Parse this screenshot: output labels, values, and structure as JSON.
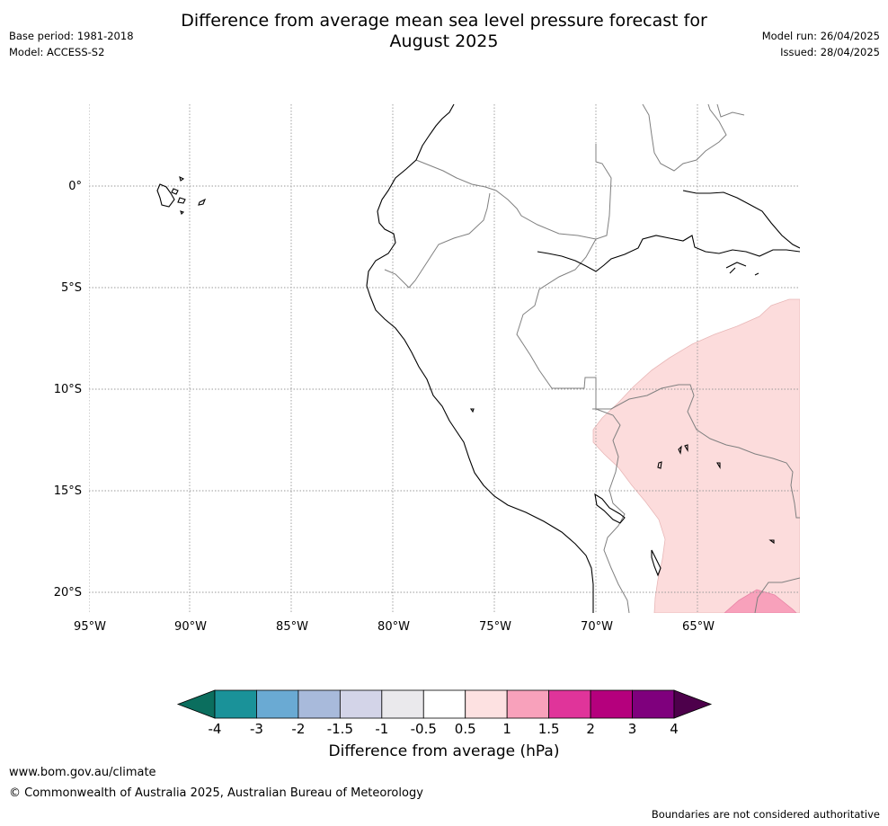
{
  "title_line1": "Difference from average mean sea level pressure forecast for",
  "title_line2": "August 2025",
  "meta_left": [
    "Base period: 1981-2018",
    "Model: ACCESS-S2"
  ],
  "meta_right": [
    "Model run: 26/04/2025",
    "Issued: 28/04/2025"
  ],
  "map": {
    "lon_labels": [
      "95°W",
      "90°W",
      "85°W",
      "80°W",
      "75°W",
      "70°W",
      "65°W"
    ],
    "lat_labels": [
      "0°",
      "5°S",
      "10°S",
      "15°S",
      "20°S"
    ],
    "lon_values": [
      -95,
      -90,
      -85,
      -80,
      -75,
      -70,
      -65
    ],
    "lat_values": [
      0,
      -5,
      -10,
      -15,
      -20
    ],
    "extent": {
      "lon": [
        -95,
        -60
      ],
      "lat": [
        -21,
        4
      ]
    },
    "anomaly_colors": {
      "light_pink": "#fcdcdc",
      "pink": "#f8a1bb"
    }
  },
  "colorbar": {
    "ticks": [
      "-4",
      "-3",
      "-2",
      "-1.5",
      "-1",
      "-0.5",
      "0.5",
      "1",
      "1.5",
      "2",
      "3",
      "4"
    ],
    "colors": [
      "#0b6e5e",
      "#1a9299",
      "#6aaad3",
      "#a8badb",
      "#d3d4e8",
      "#eae9ec",
      "#ffffff",
      "#fde1e1",
      "#f8a1bb",
      "#e0349a",
      "#b5007d",
      "#7f007d",
      "#4d004b"
    ],
    "label": "Difference from average (hPa)"
  },
  "footer": {
    "url": "www.bom.gov.au/climate",
    "copyright": "© Commonwealth of Australia 2025, Australian Bureau of Meteorology",
    "note": "Boundaries are not considered authoritative"
  }
}
